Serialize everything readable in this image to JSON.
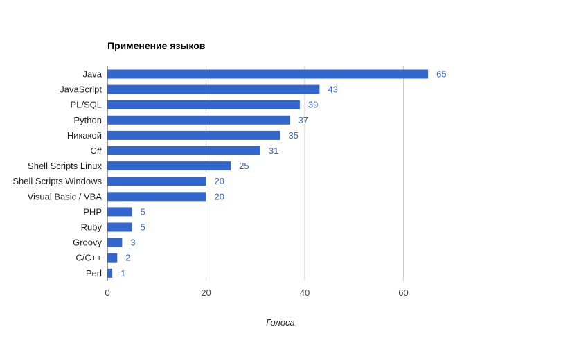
{
  "chart_data": {
    "type": "bar",
    "orientation": "horizontal",
    "title": "Применение языков",
    "xlabel": "Голоса",
    "ylabel": "",
    "categories": [
      "Java",
      "JavaScript",
      "PL/SQL",
      "Python",
      "Никакой",
      "C#",
      "Shell Scripts Linux",
      "Shell Scripts Windows",
      "Visual Basic / VBA",
      "PHP",
      "Ruby",
      "Groovy",
      "C/C++",
      "Perl"
    ],
    "values": [
      65,
      43,
      39,
      37,
      35,
      31,
      25,
      20,
      20,
      5,
      5,
      3,
      2,
      1
    ],
    "xlim": [
      0,
      80
    ],
    "xticks": [
      0,
      20,
      40,
      60
    ],
    "grid": true,
    "legend": "none",
    "colors": {
      "bar": "#3366cc",
      "value_label": "#3366cc",
      "grid": "#cccccc"
    }
  }
}
